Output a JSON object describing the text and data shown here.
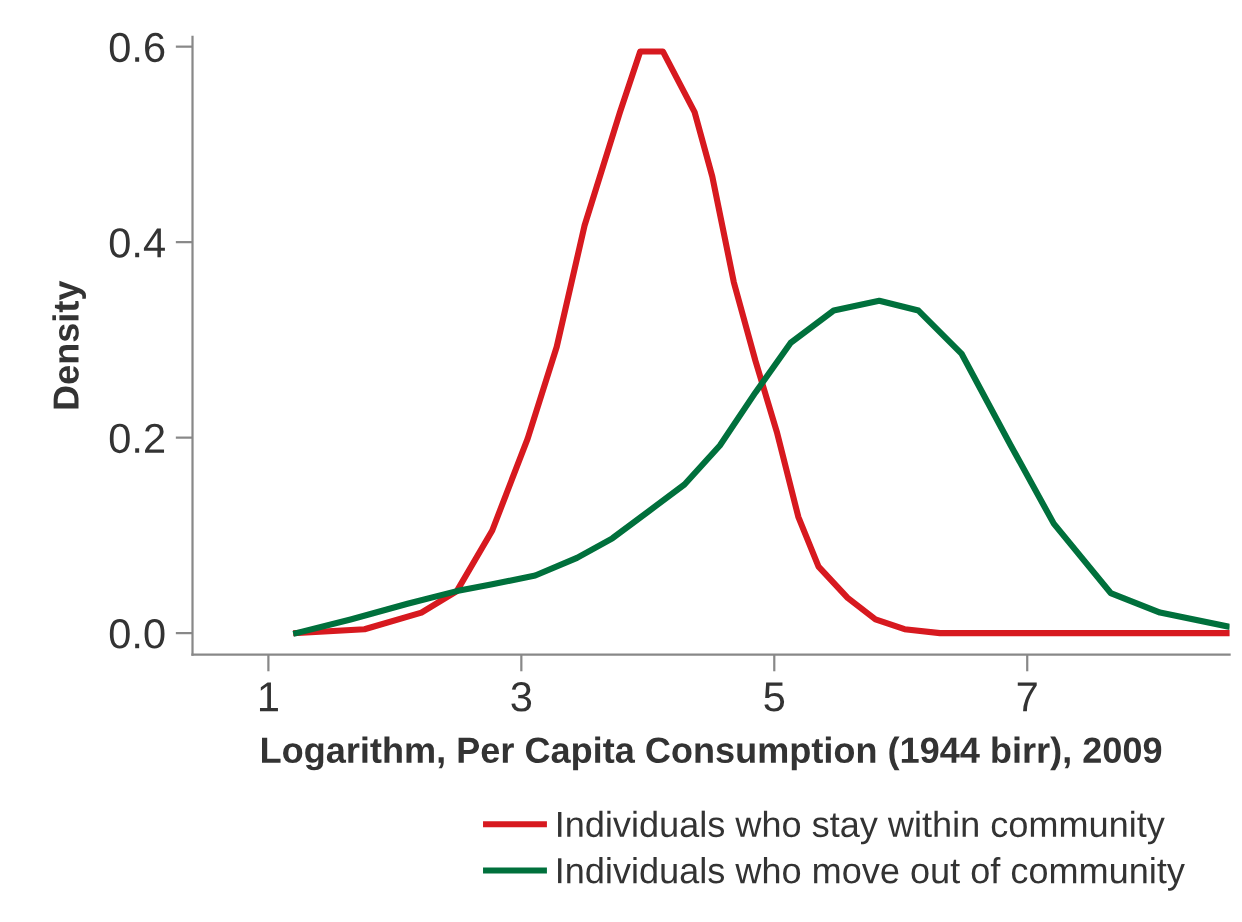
{
  "chart_data": {
    "type": "line",
    "xlabel": "Logarithm, Per Capita Consumption (1944 birr), 2009",
    "ylabel": "Density",
    "xlim": [
      0.4,
      8.6
    ],
    "xticks": [
      1,
      3,
      5,
      7
    ],
    "ylim": [
      -0.022,
      0.61
    ],
    "yticks": [
      {
        "value": 0,
        "label": "0.0"
      },
      {
        "value": 0.2,
        "label": "0.2"
      },
      {
        "value": 0.4,
        "label": "0.4"
      },
      {
        "value": 0.6,
        "label": "0.6"
      }
    ],
    "grid": false,
    "legend": "bottom",
    "marker": "none",
    "line_style": "solid",
    "series": [
      {
        "name": "Individuals who stay within community",
        "color": "#d7191f",
        "x": [
          1.22,
          1.76,
          2.21,
          2.49,
          2.77,
          3.05,
          3.28,
          3.5,
          3.78,
          3.94,
          4.12,
          4.37,
          4.51,
          4.68,
          4.85,
          5.02,
          5.19,
          5.35,
          5.58,
          5.8,
          6.03,
          6.31,
          8.58
        ],
        "values": [
          0,
          0.004,
          0.021,
          0.043,
          0.105,
          0.199,
          0.293,
          0.417,
          0.533,
          0.595,
          0.595,
          0.533,
          0.467,
          0.359,
          0.279,
          0.206,
          0.119,
          0.068,
          0.036,
          0.014,
          0.004,
          0,
          0
        ]
      },
      {
        "name": "Individuals who move out of community",
        "color": "#00703c",
        "x": [
          1.22,
          1.65,
          2.1,
          2.49,
          2.77,
          3.11,
          3.44,
          3.72,
          4.01,
          4.29,
          4.57,
          4.85,
          5.13,
          5.47,
          5.83,
          6.14,
          6.48,
          6.87,
          7.21,
          7.66,
          8.05,
          8.58
        ],
        "values": [
          0,
          0.014,
          0.03,
          0.043,
          0.05,
          0.059,
          0.077,
          0.097,
          0.125,
          0.152,
          0.192,
          0.246,
          0.297,
          0.33,
          0.34,
          0.33,
          0.286,
          0.192,
          0.112,
          0.041,
          0.021,
          0.007
        ]
      }
    ]
  }
}
